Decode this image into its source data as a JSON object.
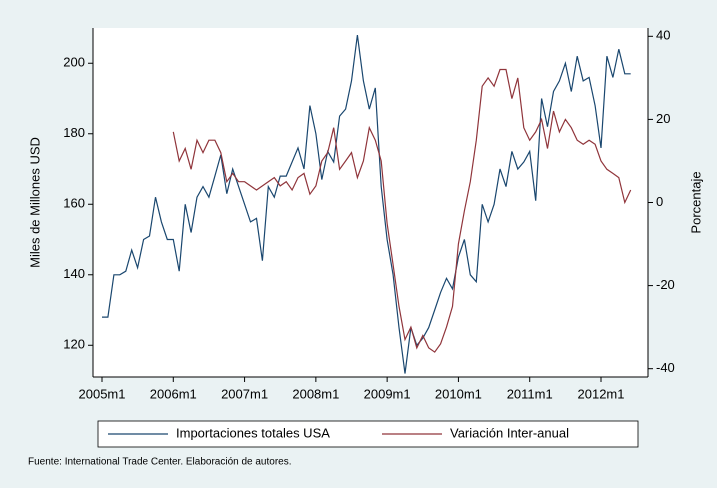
{
  "chart_data": {
    "type": "line",
    "categories": [
      "2005m1",
      null,
      null,
      null,
      null,
      null,
      null,
      null,
      null,
      null,
      null,
      null,
      "2006m1",
      null,
      null,
      null,
      null,
      null,
      null,
      null,
      null,
      null,
      null,
      null,
      "2007m1",
      null,
      null,
      null,
      null,
      null,
      null,
      null,
      null,
      null,
      null,
      null,
      "2008m1",
      null,
      null,
      null,
      null,
      null,
      null,
      null,
      null,
      null,
      null,
      null,
      "2009m1",
      null,
      null,
      null,
      null,
      null,
      null,
      null,
      null,
      null,
      null,
      null,
      "2010m1",
      null,
      null,
      null,
      null,
      null,
      null,
      null,
      null,
      null,
      null,
      null,
      "2011m1",
      null,
      null,
      null,
      null,
      null,
      null,
      null,
      null,
      null,
      null,
      null,
      "2012m1",
      null,
      null,
      null,
      null,
      null
    ],
    "series": [
      {
        "name": "Importaciones totales USA",
        "color": "#1a476f",
        "values": [
          128,
          128,
          140,
          140,
          141,
          147,
          142,
          150,
          151,
          162,
          155,
          150,
          150,
          141,
          160,
          152,
          162,
          165,
          162,
          168,
          174,
          163,
          170,
          165,
          160,
          155,
          156,
          144,
          165,
          162,
          168,
          168,
          172,
          176,
          170,
          188,
          180,
          167,
          175,
          172,
          185,
          187,
          195,
          208,
          195,
          187,
          193,
          165,
          150,
          140,
          125,
          112,
          125,
          120,
          122,
          125,
          130,
          135,
          139,
          136,
          145,
          150,
          140,
          138,
          160,
          155,
          160,
          170,
          165,
          175,
          170,
          172,
          175,
          161,
          190,
          182,
          192,
          195,
          200,
          192,
          202,
          195,
          196,
          188,
          176,
          202,
          196,
          204,
          197,
          197
        ]
      },
      {
        "name": "Variación Inter-anual",
        "color": "#90353b",
        "axis": "y2",
        "values": [
          null,
          null,
          null,
          null,
          null,
          null,
          null,
          null,
          null,
          null,
          null,
          null,
          17,
          10,
          13,
          8,
          15,
          12,
          15,
          15,
          12,
          5,
          7,
          5,
          5,
          4,
          3,
          4,
          5,
          6,
          4,
          5,
          3,
          6,
          7,
          2,
          4,
          10,
          12,
          18,
          8,
          10,
          12,
          6,
          10,
          18,
          15,
          10,
          -5,
          -15,
          -25,
          -33,
          -30,
          -35,
          -32,
          -35,
          -36,
          -34,
          -30,
          -25,
          -10,
          -2,
          5,
          15,
          28,
          30,
          28,
          32,
          32,
          25,
          30,
          18,
          15,
          17,
          20,
          13,
          22,
          17,
          20,
          18,
          15,
          14,
          15,
          14,
          10,
          8,
          7,
          6,
          0,
          3
        ]
      }
    ],
    "ylabel": "Miles de Millones USD",
    "y2label": "Porcentaje",
    "ylim": [
      111,
      210
    ],
    "yticks": [
      120,
      140,
      160,
      180,
      200
    ],
    "y2lim": [
      -42,
      42
    ],
    "y2ticks": [
      -40,
      -20,
      0,
      20,
      40
    ],
    "grid": false,
    "note": "Fuente: International Trade Center. Elaboración de autores."
  }
}
